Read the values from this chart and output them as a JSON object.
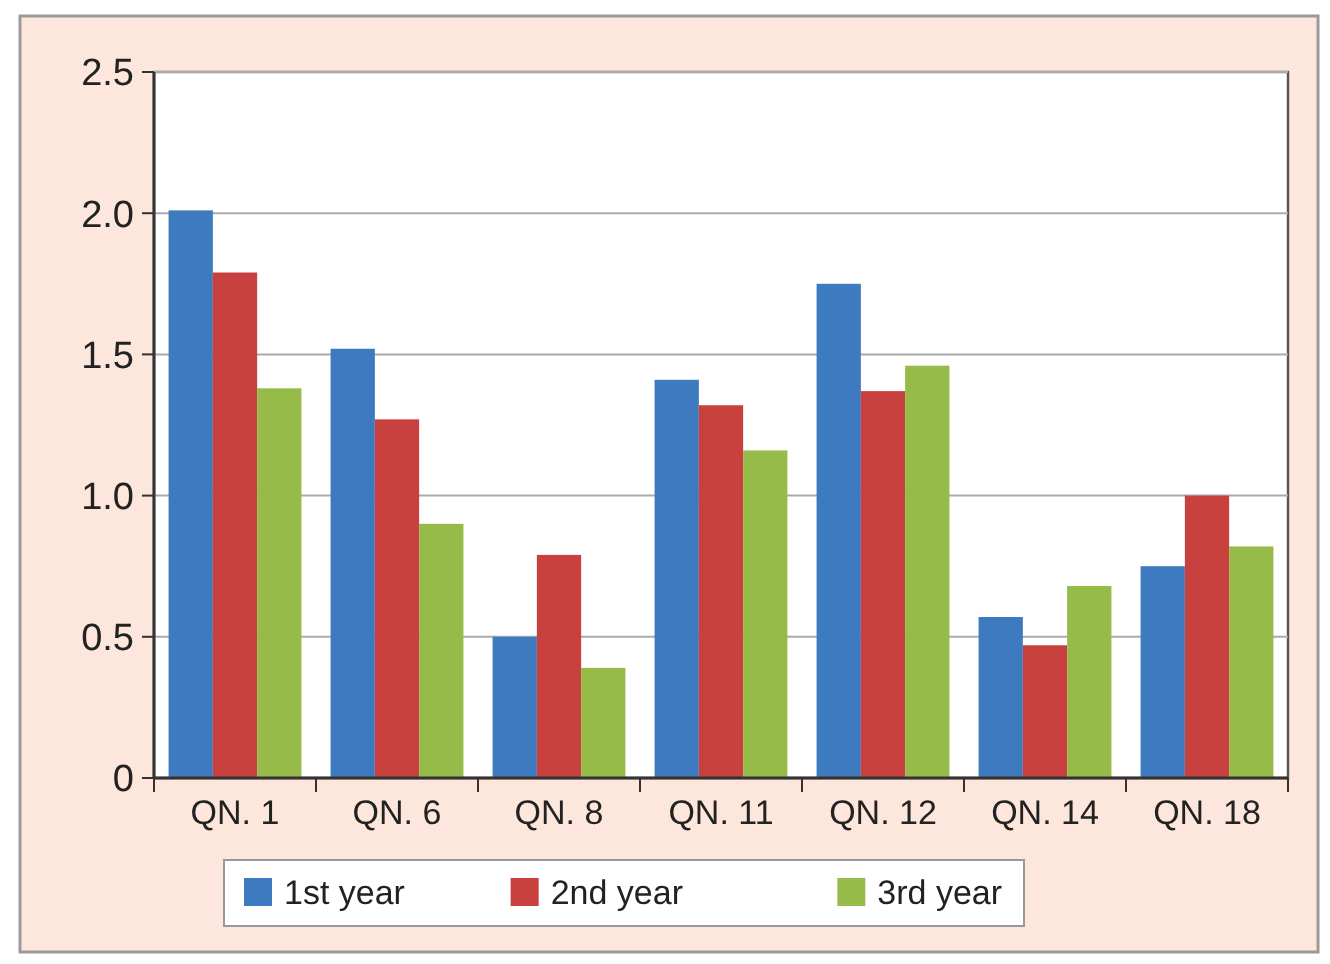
{
  "chart_data": {
    "type": "bar",
    "categories": [
      "QN. 1",
      "QN. 6",
      "QN. 8",
      "QN. 11",
      "QN. 12",
      "QN. 14",
      "QN. 18"
    ],
    "series": [
      {
        "name": "1st year",
        "color": "#3d7abf",
        "values": [
          2.01,
          1.52,
          0.5,
          1.41,
          1.75,
          0.57,
          0.75
        ]
      },
      {
        "name": "2nd year",
        "color": "#c8413e",
        "values": [
          1.79,
          1.27,
          0.79,
          1.32,
          1.37,
          0.47,
          1.0
        ]
      },
      {
        "name": "3rd year",
        "color": "#97bb48",
        "values": [
          1.38,
          0.9,
          0.39,
          1.16,
          1.46,
          0.68,
          0.82
        ]
      }
    ],
    "ylim": [
      0,
      2.5
    ],
    "yticks": [
      {
        "value": 0,
        "label": "0"
      },
      {
        "value": 0.5,
        "label": "0.5"
      },
      {
        "value": 1,
        "label": "1.0"
      },
      {
        "value": 1.5,
        "label": "1.5"
      },
      {
        "value": 2,
        "label": "2.0"
      },
      {
        "value": 2.5,
        "label": "2.5"
      }
    ],
    "grid": "y",
    "legend": "bottom"
  }
}
